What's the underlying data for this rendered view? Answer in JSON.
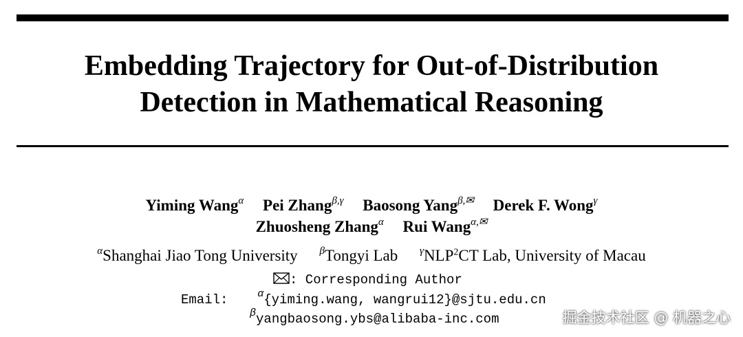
{
  "title": {
    "line1": "Embedding Trajectory for Out-of-Distribution",
    "line2": "Detection in Mathematical Reasoning"
  },
  "authors": [
    {
      "name": "Yiming Wang",
      "marks": "α"
    },
    {
      "name": "Pei Zhang",
      "marks": "β,γ"
    },
    {
      "name": "Baosong Yang",
      "marks": "β,"
    },
    {
      "name": "Derek F. Wong",
      "marks": "γ"
    },
    {
      "name": "Zhuosheng Zhang",
      "marks": "α"
    },
    {
      "name": "Rui Wang",
      "marks": "α,"
    }
  ],
  "affiliations": [
    {
      "mark": "α",
      "text": "Shanghai Jiao Tong University"
    },
    {
      "mark": "β",
      "text": "Tongyi Lab"
    },
    {
      "mark": "γ",
      "text_pre": "NLP",
      "sup": "2",
      "text_post": "CT Lab, University of Macau"
    }
  ],
  "corresponding": ": Corresponding Author",
  "email": {
    "label": "Email:",
    "alpha_mark": "α",
    "alpha_address": "{yiming.wang, wangrui12}@sjtu.edu.cn",
    "beta_mark": "β",
    "beta_address": "yangbaosong.ybs@alibaba-inc.com"
  },
  "watermark": "掘金技术社区 @ 机器之心",
  "icons": [
    "envelope-icon"
  ]
}
